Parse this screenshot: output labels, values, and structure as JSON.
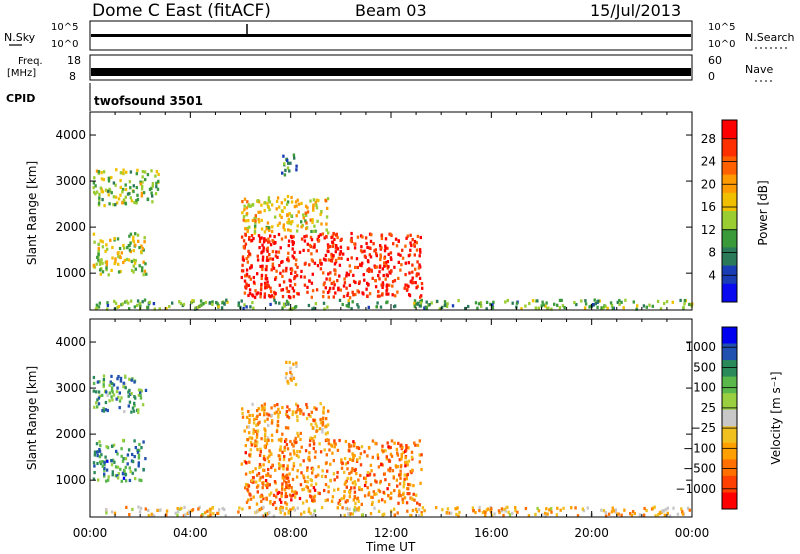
{
  "header": {
    "station": "Dome C East (fitACF)",
    "beam": "Beam 03",
    "date": "15/Jul/2013"
  },
  "status_panels": {
    "nsky_label": "N.Sky",
    "nsky_ticks": [
      "10^5",
      "10^0"
    ],
    "nsearch_label": "N.Search",
    "nsearch_ticks": [
      "10^5",
      "10^0"
    ],
    "freq_label_line1": "Freq.",
    "freq_label_line2": "[MHz]",
    "freq_ticks": [
      "18",
      "8"
    ],
    "nave_label": "Nave",
    "nave_ticks": [
      "60",
      "0"
    ],
    "cpid_label": "CPID",
    "cpid_value": "twofsound 3501"
  },
  "chart_data": [
    {
      "type": "heatmap",
      "name": "power",
      "ylabel": "Slant Range [km]",
      "yticks": [
        "1000",
        "2000",
        "3000",
        "4000"
      ],
      "ylim": [
        200,
        4500
      ],
      "xlim": [
        0,
        24
      ],
      "colorbar_label": "Power [dB]",
      "colorbar_ticks": [
        "4",
        "8",
        "12",
        "16",
        "20",
        "24",
        "28"
      ],
      "colorbar_colors": [
        "#0a0af0",
        "#1a3cb4",
        "#2a7a5a",
        "#3a9a3a",
        "#9acd32",
        "#f0c000",
        "#ff9a00",
        "#ff6000",
        "#ff3000",
        "#ff0000"
      ],
      "regions": [
        {
          "t0": 0.1,
          "t1": 2.7,
          "r0": 2500,
          "r1": 3300,
          "level": 0.45
        },
        {
          "t0": 0.1,
          "t1": 2.2,
          "r0": 1000,
          "r1": 1900,
          "level": 0.5
        },
        {
          "t0": 6.0,
          "t1": 13.2,
          "r0": 500,
          "r1": 1900,
          "level": 0.9
        },
        {
          "t0": 6.0,
          "t1": 9.5,
          "r0": 1900,
          "r1": 2700,
          "level": 0.55
        },
        {
          "t0": 7.6,
          "t1": 8.2,
          "r0": 3100,
          "r1": 3600,
          "level": 0.3
        },
        {
          "t0": 0.0,
          "t1": 24.0,
          "r0": 250,
          "r1": 450,
          "level": 0.35
        }
      ]
    },
    {
      "type": "heatmap",
      "name": "velocity",
      "ylabel": "Slant Range [km]",
      "yticks": [
        "1000",
        "2000",
        "3000",
        "4000"
      ],
      "ylim": [
        200,
        4500
      ],
      "xlim": [
        0,
        24
      ],
      "xticks": [
        "00:00",
        "04:00",
        "08:00",
        "12:00",
        "16:00",
        "20:00",
        "00:00"
      ],
      "xlabel": "Time UT",
      "colorbar_label": "Velocity [m s⁻¹]",
      "colorbar_ticks": [
        "1000",
        "500",
        "100",
        "25",
        "−25",
        "−100",
        "−500",
        "−1000"
      ],
      "colorbar_colors": [
        "#0000f0",
        "#2050b0",
        "#2a8a5a",
        "#5ab84a",
        "#9ad040",
        "#c8c8c8",
        "#f0c020",
        "#ffa000",
        "#ff7000",
        "#ff4000",
        "#ff0000"
      ],
      "regions": [
        {
          "t0": 0.1,
          "t1": 2.2,
          "r0": 2500,
          "r1": 3300,
          "level": 0.3
        },
        {
          "t0": 0.1,
          "t1": 2.2,
          "r0": 1000,
          "r1": 1900,
          "level": 0.25
        },
        {
          "t0": 6.0,
          "t1": 13.2,
          "r0": 500,
          "r1": 1900,
          "level": 0.75
        },
        {
          "t0": 6.0,
          "t1": 9.5,
          "r0": 1900,
          "r1": 2700,
          "level": 0.7
        },
        {
          "t0": 7.6,
          "t1": 8.2,
          "r0": 3100,
          "r1": 3600,
          "level": 0.6
        },
        {
          "t0": 0.0,
          "t1": 24.0,
          "r0": 250,
          "r1": 450,
          "level": 0.62
        }
      ]
    }
  ]
}
